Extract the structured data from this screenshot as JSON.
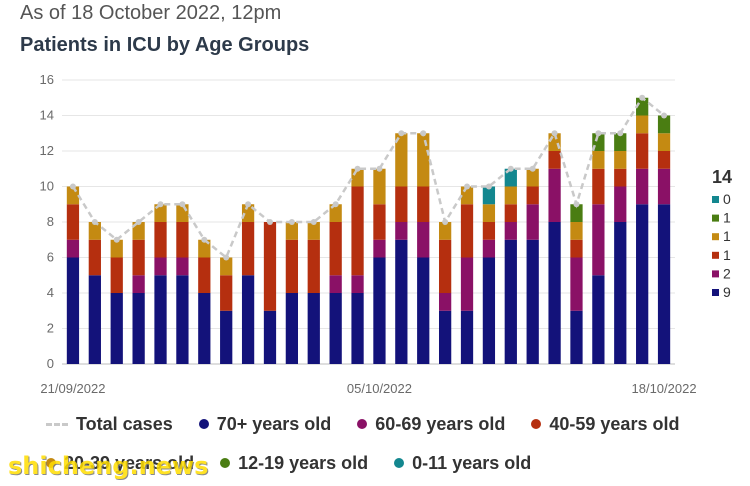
{
  "subtitle": "As of 18 October 2022, 12pm",
  "title": "Patients in ICU by Age Groups",
  "watermark": "shicheng.news",
  "colors": {
    "age_70_plus": "#13127a",
    "age_60_69": "#8a1166",
    "age_40_59": "#b52f0f",
    "age_20_39": "#c48a12",
    "age_12_19": "#4a7d12",
    "age_0_11": "#13878f",
    "total": "#c9c9c9",
    "grid": "#e6e6e6"
  },
  "legend": [
    {
      "label": "Total cases",
      "key": "total",
      "marker": "line"
    },
    {
      "label": "70+ years old",
      "key": "age_70_plus",
      "marker": "dot"
    },
    {
      "label": "60-69 years old",
      "key": "age_60_69",
      "marker": "dot"
    },
    {
      "label": "40-59 years old",
      "key": "age_40_59",
      "marker": "dot"
    },
    {
      "label": "20-39 years old",
      "key": "age_20_39",
      "marker": "dot"
    },
    {
      "label": "12-19 years old",
      "key": "age_12_19",
      "marker": "dot"
    },
    {
      "label": "0-11 years old",
      "key": "age_0_11",
      "marker": "dot"
    }
  ],
  "chart_data": {
    "type": "bar",
    "stacked": true,
    "ylim": [
      0,
      16
    ],
    "yticks": [
      0,
      2,
      4,
      6,
      8,
      10,
      12,
      14,
      16
    ],
    "grid": true,
    "x_tick_labels": [
      {
        "index": 0,
        "label": "21/09/2022"
      },
      {
        "index": 14,
        "label": "05/10/2022"
      },
      {
        "index": 27,
        "label": "18/10/2022"
      }
    ],
    "categories": [
      "21/09/2022",
      "22/09/2022",
      "23/09/2022",
      "24/09/2022",
      "25/09/2022",
      "26/09/2022",
      "27/09/2022",
      "28/09/2022",
      "29/09/2022",
      "30/09/2022",
      "01/10/2022",
      "02/10/2022",
      "03/10/2022",
      "04/10/2022",
      "05/10/2022",
      "06/10/2022",
      "07/10/2022",
      "08/10/2022",
      "09/10/2022",
      "10/10/2022",
      "11/10/2022",
      "12/10/2022",
      "13/10/2022",
      "14/10/2022",
      "15/10/2022",
      "16/10/2022",
      "17/10/2022",
      "18/10/2022"
    ],
    "series": [
      {
        "name": "70+ years old",
        "key": "age_70_plus",
        "values": [
          6,
          5,
          4,
          4,
          5,
          5,
          4,
          3,
          5,
          3,
          4,
          4,
          4,
          4,
          6,
          7,
          6,
          3,
          3,
          6,
          7,
          7,
          8,
          3,
          5,
          8,
          9,
          9
        ]
      },
      {
        "name": "60-69 years old",
        "key": "age_60_69",
        "values": [
          1,
          0,
          0,
          1,
          1,
          1,
          0,
          0,
          0,
          0,
          0,
          0,
          1,
          1,
          1,
          1,
          2,
          1,
          3,
          1,
          1,
          2,
          3,
          3,
          4,
          2,
          2,
          2
        ]
      },
      {
        "name": "40-59 years old",
        "key": "age_40_59",
        "values": [
          2,
          2,
          2,
          2,
          2,
          2,
          2,
          2,
          3,
          5,
          3,
          3,
          3,
          5,
          2,
          2,
          2,
          3,
          3,
          1,
          1,
          1,
          1,
          1,
          2,
          1,
          2,
          1
        ]
      },
      {
        "name": "20-39 years old",
        "key": "age_20_39",
        "values": [
          1,
          1,
          1,
          1,
          1,
          1,
          1,
          1,
          1,
          0,
          1,
          1,
          1,
          1,
          2,
          3,
          3,
          1,
          1,
          1,
          1,
          1,
          1,
          1,
          1,
          1,
          1,
          1
        ]
      },
      {
        "name": "12-19 years old",
        "key": "age_12_19",
        "values": [
          0,
          0,
          0,
          0,
          0,
          0,
          0,
          0,
          0,
          0,
          0,
          0,
          0,
          0,
          0,
          0,
          0,
          0,
          0,
          0,
          0,
          0,
          0,
          1,
          1,
          1,
          1,
          1
        ]
      },
      {
        "name": "0-11 years old",
        "key": "age_0_11",
        "values": [
          0,
          0,
          0,
          0,
          0,
          0,
          0,
          0,
          0,
          0,
          0,
          0,
          0,
          0,
          0,
          0,
          0,
          0,
          0,
          1,
          1,
          0,
          0,
          0,
          0,
          0,
          0,
          0
        ]
      }
    ],
    "total_cases": [
      10,
      8,
      7,
      8,
      9,
      9,
      7,
      6,
      9,
      8,
      8,
      8,
      9,
      11,
      11,
      13,
      13,
      8,
      10,
      10,
      11,
      11,
      13,
      9,
      13,
      13,
      15,
      14
    ],
    "side_panel": {
      "total": "14",
      "values": [
        "0",
        "1",
        "1",
        "1",
        "2",
        "9"
      ]
    }
  }
}
